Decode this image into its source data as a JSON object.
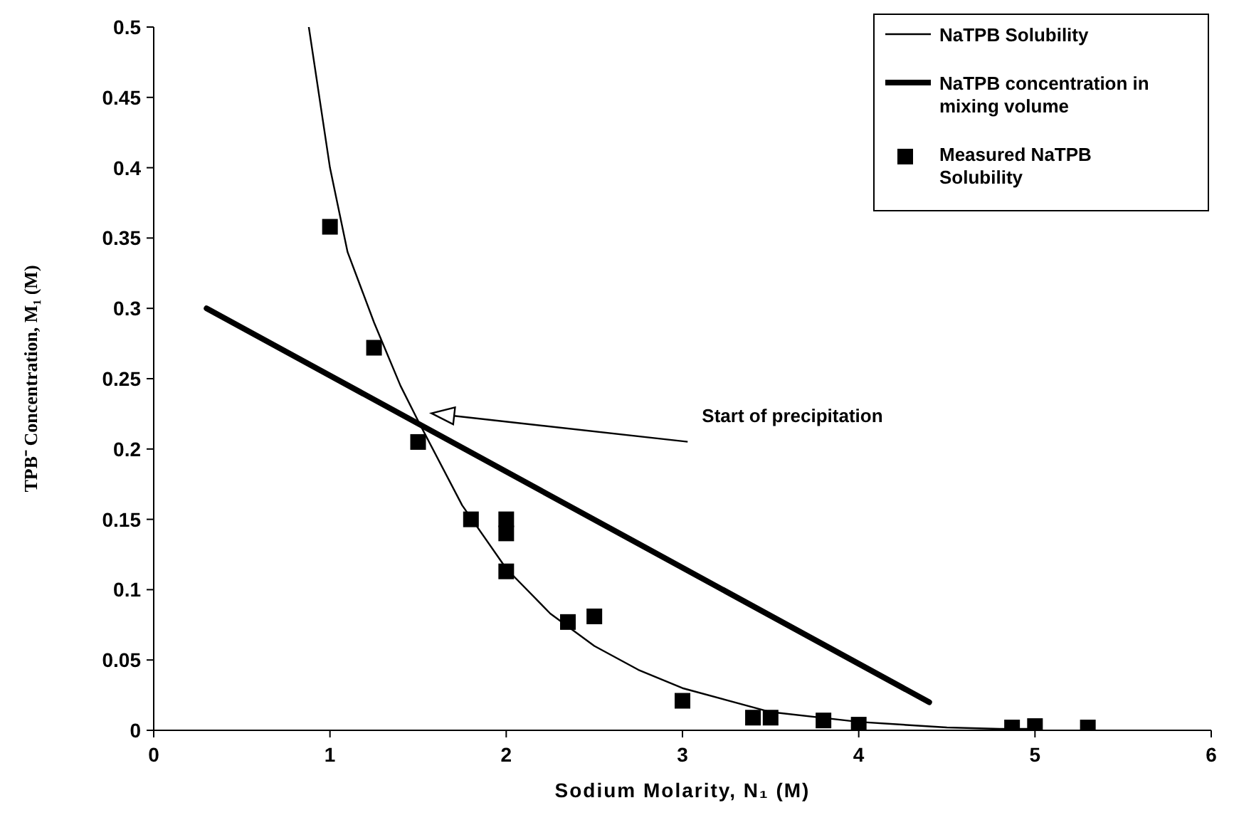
{
  "chart_data": {
    "type": "line",
    "xlabel": "Sodium Molarity, N₁ (M)",
    "ylabel": "TPB⁻ Concentration, M₁ (M)",
    "xlim": [
      0,
      6
    ],
    "xticks": [
      0,
      1,
      2,
      3,
      4,
      5,
      6
    ],
    "ylim": [
      0,
      0.5
    ],
    "yticks": [
      0,
      0.05,
      0.1,
      0.15,
      0.2,
      0.25,
      0.3,
      0.35,
      0.4,
      0.45,
      0.5
    ],
    "grid": false,
    "legend": "top right",
    "series": [
      {
        "name": "NaTPB Solubility",
        "color": "#000000",
        "marker": "none",
        "x": [
          0.88,
          1.0,
          1.1,
          1.25,
          1.4,
          1.5,
          1.75,
          2.0,
          2.25,
          2.5,
          2.75,
          3.0,
          3.5,
          4.0,
          4.5,
          4.8,
          5.0
        ],
        "values": [
          0.5,
          0.4,
          0.34,
          0.29,
          0.245,
          0.22,
          0.16,
          0.115,
          0.083,
          0.06,
          0.043,
          0.03,
          0.013,
          0.006,
          0.002,
          0.001,
          0.001
        ]
      },
      {
        "name": "NaTPB concentration in mixing volume",
        "color": "#000000",
        "marker": "none",
        "x": [
          0.3,
          4.4
        ],
        "values": [
          0.3,
          0.02
        ]
      },
      {
        "name": "Measured NaTPB Solubility",
        "type": "scatter",
        "color": "#000000",
        "marker": "square",
        "x": [
          1,
          1.25,
          1.5,
          1.8,
          2,
          2,
          2,
          2.35,
          2.5,
          3,
          3.4,
          3.5,
          3.8,
          4,
          4.87,
          5,
          5.3
        ],
        "values": [
          0.358,
          0.272,
          0.205,
          0.15,
          0.15,
          0.14,
          0.113,
          0.077,
          0.081,
          0.021,
          0.009,
          0.009,
          0.007,
          0.004,
          0.002,
          0.003,
          0.002
        ]
      }
    ],
    "annotations": [
      "Start of precipitation"
    ]
  }
}
